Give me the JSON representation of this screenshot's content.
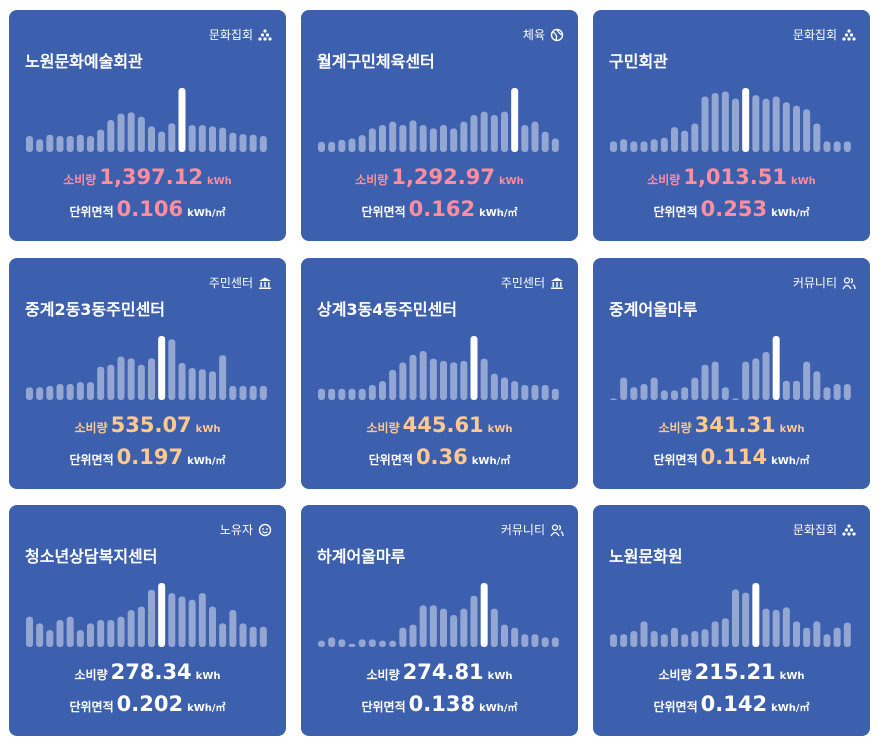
{
  "cards": [
    {
      "category": "문화집회",
      "title": "노원문화예술회관",
      "usage_label": "소비량",
      "usage": "1,397.12",
      "usage_unit": "kWh",
      "area_label": "단위면적",
      "area": "0.106",
      "area_unit": "kWh/㎡",
      "value_color": "#ff8ea0",
      "highlight": 15,
      "bars": [
        25,
        20,
        27,
        25,
        25,
        27,
        25,
        35,
        50,
        60,
        62,
        55,
        40,
        32,
        45,
        100,
        42,
        42,
        40,
        38,
        30,
        28,
        27,
        25
      ]
    },
    {
      "category": "체육",
      "title": "월계구민체육센터",
      "usage_label": "소비량",
      "usage": "1,292.97",
      "usage_unit": "kWh",
      "area_label": "단위면적",
      "area": "0.162",
      "area_unit": "kWh/㎡",
      "value_color": "#ff8ea0",
      "highlight": 19,
      "bars": [
        15,
        15,
        18,
        20,
        25,
        35,
        40,
        45,
        40,
        47,
        40,
        35,
        40,
        35,
        45,
        55,
        60,
        55,
        60,
        95,
        40,
        45,
        30,
        20
      ]
    },
    {
      "category": "문화집회",
      "title": "구민회관",
      "usage_label": "소비량",
      "usage": "1,013.51",
      "usage_unit": "kWh",
      "area_label": "단위면적",
      "area": "0.253",
      "area_unit": "kWh/㎡",
      "value_color": "#ff8ea0",
      "highlight": 13,
      "bars": [
        15,
        18,
        15,
        15,
        18,
        20,
        35,
        30,
        40,
        78,
        83,
        85,
        75,
        90,
        80,
        75,
        78,
        70,
        65,
        60,
        40,
        15,
        15,
        15
      ]
    },
    {
      "category": "주민센터",
      "title": "중계2동3동주민센터",
      "usage_label": "소비량",
      "usage": "535.07",
      "usage_unit": "kWh",
      "area_label": "단위면적",
      "area": "0.197",
      "area_unit": "kWh/㎡",
      "value_color": "#ffc98f",
      "highlight": 13,
      "bars": [
        20,
        20,
        22,
        25,
        25,
        28,
        28,
        52,
        55,
        68,
        65,
        55,
        65,
        100,
        95,
        58,
        50,
        48,
        45,
        70,
        22,
        22,
        22,
        22
      ]
    },
    {
      "category": "주민센터",
      "title": "상계3동4동주민센터",
      "usage_label": "소비량",
      "usage": "445.61",
      "usage_unit": "kWh",
      "area_label": "단위면적",
      "area": "0.36",
      "area_unit": "kWh/㎡",
      "value_color": "#ffc98f",
      "highlight": 15,
      "bars": [
        15,
        15,
        15,
        15,
        15,
        20,
        25,
        40,
        50,
        60,
        65,
        55,
        52,
        50,
        52,
        85,
        55,
        35,
        30,
        25,
        20,
        20,
        20,
        15
      ]
    },
    {
      "category": "커뮤니티",
      "title": "중계어울마루",
      "usage_label": "소비량",
      "usage": "341.31",
      "usage_unit": "kWh",
      "area_label": "단위면적",
      "area": "0.114",
      "area_unit": "kWh/㎡",
      "value_color": "#ffc98f",
      "highlight": 16,
      "bars": [
        0,
        35,
        20,
        25,
        35,
        15,
        15,
        20,
        35,
        55,
        60,
        20,
        0,
        60,
        65,
        75,
        100,
        30,
        30,
        60,
        45,
        20,
        25,
        25
      ]
    },
    {
      "category": "노유자",
      "title": "청소년상담복지센터",
      "usage_label": "소비량",
      "usage": "278.34",
      "usage_unit": "kWh",
      "area_label": "단위면적",
      "area": "0.202",
      "area_unit": "kWh/㎡",
      "value_color": "#ffffff",
      "highlight": 13,
      "bars": [
        45,
        35,
        25,
        40,
        45,
        25,
        35,
        40,
        40,
        45,
        55,
        60,
        85,
        95,
        80,
        75,
        70,
        80,
        60,
        35,
        55,
        35,
        30,
        30
      ]
    },
    {
      "category": "커뮤니티",
      "title": "하계어울마루",
      "usage_label": "소비량",
      "usage": "274.81",
      "usage_unit": "kWh",
      "area_label": "단위면적",
      "area": "0.138",
      "area_unit": "kWh/㎡",
      "value_color": "#ffffff",
      "highlight": 16,
      "bars": [
        10,
        15,
        12,
        5,
        12,
        12,
        10,
        10,
        30,
        35,
        65,
        65,
        60,
        50,
        60,
        80,
        100,
        60,
        35,
        30,
        20,
        20,
        15,
        15
      ]
    },
    {
      "category": "문화집회",
      "title": "노원문화원",
      "usage_label": "소비량",
      "usage": "215.21",
      "usage_unit": "kWh",
      "area_label": "단위면적",
      "area": "0.142",
      "area_unit": "kWh/㎡",
      "value_color": "#ffffff",
      "highlight": 14,
      "bars": [
        20,
        20,
        25,
        40,
        25,
        20,
        30,
        20,
        25,
        28,
        40,
        45,
        90,
        85,
        100,
        60,
        58,
        62,
        40,
        30,
        40,
        20,
        30,
        38
      ]
    }
  ]
}
